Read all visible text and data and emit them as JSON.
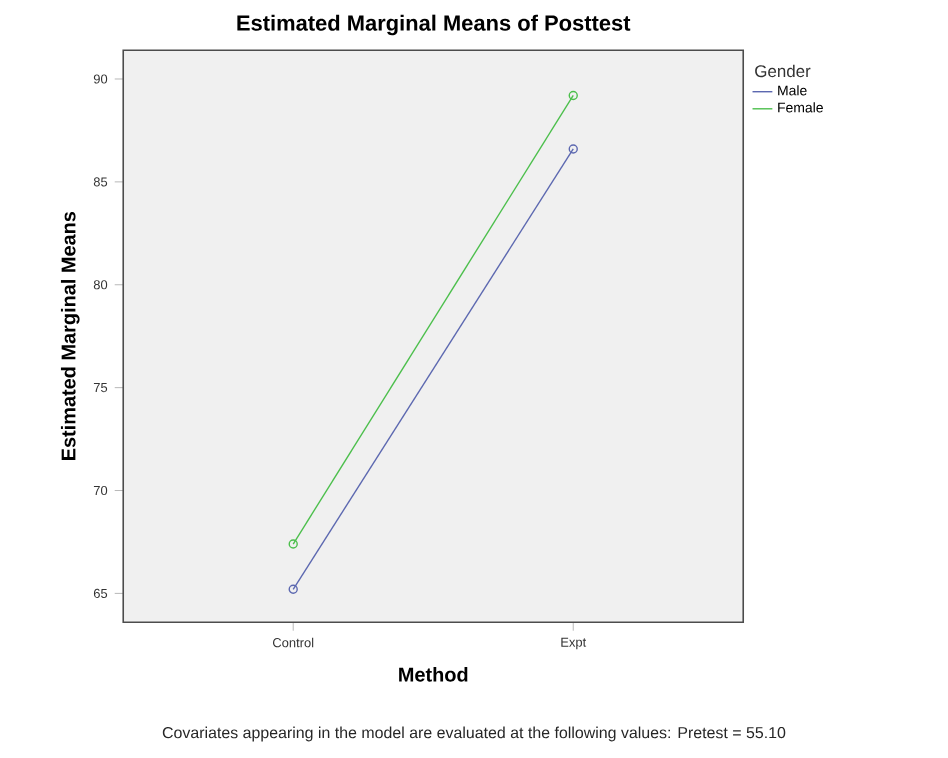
{
  "chart_data": {
    "type": "line",
    "title": "Estimated Marginal Means of Posttest",
    "xlabel": "Method",
    "ylabel": "Estimated Marginal Means",
    "legend_title": "Gender",
    "categories": [
      "Control",
      "Expt"
    ],
    "series": [
      {
        "name": "Male",
        "color": "#5c68b0",
        "values": [
          65.2,
          86.6
        ]
      },
      {
        "name": "Female",
        "color": "#4cbf4c",
        "values": [
          67.4,
          89.2
        ]
      }
    ],
    "ylim": [
      63.6,
      91.4
    ],
    "yticks": [
      65,
      70,
      75,
      80,
      85,
      90
    ],
    "marker": "circle",
    "line_style": "solid",
    "grid": false,
    "legend": "top right",
    "annotations": [
      "Covariates appearing in the model are evaluated at the following values: Pretest = 55.10"
    ]
  }
}
